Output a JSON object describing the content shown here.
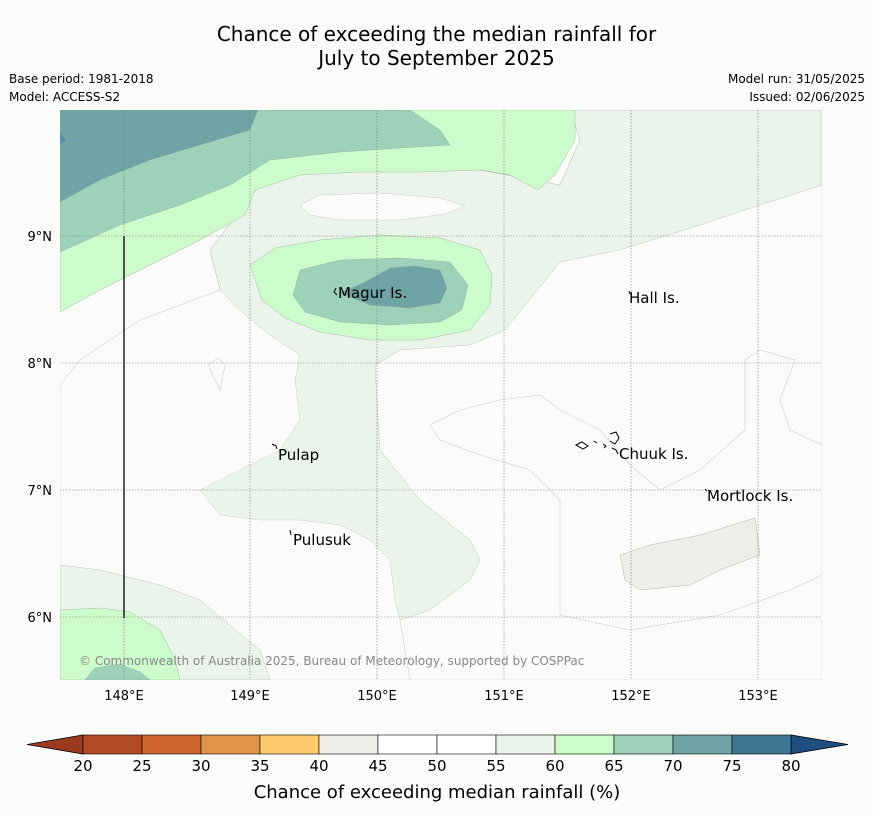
{
  "title_line1": "Chance of exceeding the median rainfall for",
  "title_line2": "July to September 2025",
  "base_period": "Base period: 1981-2018",
  "model": "Model: ACCESS-S2",
  "model_run": "Model run: 31/05/2025",
  "issued": "Issued: 02/06/2025",
  "copyright": "© Commonwealth of Australia 2025, Bureau of Meteorology, supported by COSPPac",
  "lat_labels": [
    "9°N",
    "8°N",
    "7°N",
    "6°N"
  ],
  "lon_labels": [
    "148°E",
    "149°E",
    "150°E",
    "151°E",
    "152°E",
    "153°E"
  ],
  "places": {
    "magur": "Magur Is.",
    "hall": "Hall Is.",
    "pulap": "Pulap",
    "chuuk": "Chuuk Is.",
    "mortlock": "Mortlock Is.",
    "pulusuk": "Pulusuk"
  },
  "colorbar": {
    "label": "Chance of exceeding median rainfall (%)",
    "ticks": [
      "20",
      "25",
      "30",
      "35",
      "40",
      "45",
      "50",
      "55",
      "60",
      "65",
      "70",
      "75",
      "80"
    ],
    "colors": [
      "#b34a24",
      "#cd6430",
      "#e0954a",
      "#fdcb6b",
      "#eeede8",
      "#ffffff",
      "#ffffff",
      "#eaf4ea",
      "#ccfccb",
      "#9dd1b9",
      "#6ea4a5",
      "#3e7593"
    ],
    "under_color": "#9c3a1e",
    "over_color": "#1f4f80"
  },
  "map_colors": {
    "c55_60": "#eaf4ea",
    "c60_65": "#ccfccb",
    "c65_70": "#9dd1b9",
    "c70_75": "#6ea4a5",
    "c40_45": "#eeede8"
  }
}
